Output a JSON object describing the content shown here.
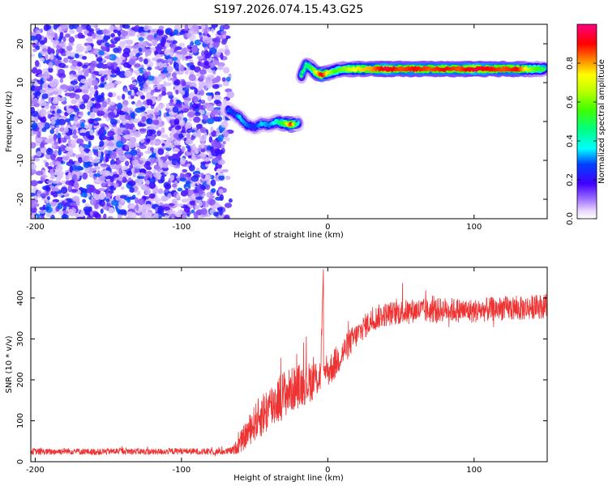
{
  "chart_data": [
    {
      "type": "heatmap",
      "title": "S197.2026.074.15.43.G25",
      "xlabel": "Height of straight line (km)",
      "ylabel": "Frequency (Hz)",
      "xlim": [
        -203,
        150
      ],
      "ylim": [
        -25,
        25
      ],
      "x_ticks": [
        -200,
        -100,
        0,
        100
      ],
      "y_ticks": [
        -20,
        -10,
        0,
        10,
        20
      ],
      "noise_region": {
        "x_range": [
          -203,
          -65
        ],
        "y_range": [
          -25,
          25
        ],
        "description_amplitude": [
          0.05,
          0.3
        ]
      },
      "signal_trace": [
        {
          "x": -68,
          "y": 3,
          "amp": 0.3
        },
        {
          "x": -64,
          "y": 2,
          "amp": 0.25
        },
        {
          "x": -60,
          "y": 1,
          "amp": 0.35
        },
        {
          "x": -55,
          "y": -1,
          "amp": 0.3
        },
        {
          "x": -50,
          "y": -1.5,
          "amp": 0.25
        },
        {
          "x": -45,
          "y": -0.5,
          "amp": 0.35
        },
        {
          "x": -40,
          "y": -1,
          "amp": 0.3
        },
        {
          "x": -35,
          "y": 0,
          "amp": 0.4
        },
        {
          "x": -30,
          "y": -0.5,
          "amp": 0.55
        },
        {
          "x": -25,
          "y": -0.8,
          "amp": 0.9
        },
        {
          "x": -20,
          "y": -0.5,
          "amp": 0.35
        },
        {
          "x": -18,
          "y": 11.8,
          "amp": 0.5
        },
        {
          "x": -15,
          "y": 14.5,
          "amp": 0.45
        },
        {
          "x": -12,
          "y": 14,
          "amp": 0.5
        },
        {
          "x": -8,
          "y": 12.5,
          "amp": 0.7
        },
        {
          "x": -4,
          "y": 12,
          "amp": 0.95
        },
        {
          "x": 0,
          "y": 12.5,
          "amp": 0.7
        },
        {
          "x": 5,
          "y": 13,
          "amp": 0.55
        },
        {
          "x": 10,
          "y": 13.5,
          "amp": 0.6
        },
        {
          "x": 20,
          "y": 13.5,
          "amp": 0.75
        },
        {
          "x": 30,
          "y": 13.5,
          "amp": 0.8
        },
        {
          "x": 40,
          "y": 13.5,
          "amp": 0.95
        },
        {
          "x": 50,
          "y": 13.5,
          "amp": 0.85
        },
        {
          "x": 60,
          "y": 13.5,
          "amp": 0.9
        },
        {
          "x": 70,
          "y": 13.5,
          "amp": 0.85
        },
        {
          "x": 80,
          "y": 13.5,
          "amp": 0.9
        },
        {
          "x": 90,
          "y": 13.5,
          "amp": 0.85
        },
        {
          "x": 100,
          "y": 13.5,
          "amp": 0.95
        },
        {
          "x": 110,
          "y": 13.5,
          "amp": 0.9
        },
        {
          "x": 120,
          "y": 13.5,
          "amp": 0.85
        },
        {
          "x": 130,
          "y": 13.5,
          "amp": 0.9
        },
        {
          "x": 140,
          "y": 13.5,
          "amp": 0.6
        },
        {
          "x": 148,
          "y": 13.5,
          "amp": 0.5
        }
      ],
      "colorbar": {
        "label": "Normalized spectral amplitude",
        "range": [
          0,
          1
        ],
        "tick_labels": [
          "0.0",
          "0.2",
          "0.4",
          "0.6",
          "0.8"
        ],
        "tick_values": [
          0,
          0.2,
          0.4,
          0.6,
          0.8
        ],
        "colormap": "hsv"
      }
    },
    {
      "type": "line",
      "title": "",
      "xlabel": "Height of straight line (km)",
      "ylabel": "SNR (10 * v/v)",
      "xlim": [
        -203,
        150
      ],
      "ylim": [
        0,
        475
      ],
      "x_ticks": [
        -200,
        -100,
        0,
        100
      ],
      "y_ticks": [
        0,
        100,
        200,
        300,
        400
      ],
      "series": [
        {
          "name": "SNR",
          "color": "#ee3333",
          "x": [
            -203,
            -190,
            -180,
            -170,
            -160,
            -150,
            -140,
            -130,
            -120,
            -110,
            -100,
            -90,
            -80,
            -70,
            -65,
            -60,
            -55,
            -50,
            -45,
            -40,
            -35,
            -30,
            -25,
            -20,
            -15,
            -10,
            -5,
            -3,
            0,
            5,
            10,
            15,
            20,
            25,
            30,
            35,
            40,
            50,
            60,
            70,
            80,
            90,
            100,
            110,
            120,
            130,
            140,
            150
          ],
          "y": [
            25,
            24,
            26,
            25,
            24,
            25,
            26,
            25,
            24,
            25,
            26,
            25,
            24,
            25,
            27,
            45,
            70,
            95,
            115,
            130,
            150,
            165,
            175,
            185,
            190,
            200,
            210,
            470,
            220,
            240,
            265,
            290,
            310,
            330,
            345,
            355,
            360,
            365,
            370,
            368,
            372,
            370,
            368,
            372,
            375,
            373,
            378,
            380
          ],
          "noise_amplitude": [
            8,
            8,
            8,
            8,
            8,
            8,
            8,
            8,
            8,
            8,
            8,
            8,
            8,
            8,
            10,
            25,
            35,
            45,
            55,
            60,
            60,
            60,
            55,
            55,
            50,
            50,
            45,
            0,
            40,
            40,
            35,
            35,
            30,
            30,
            30,
            30,
            30,
            30,
            30,
            30,
            30,
            30,
            30,
            30,
            30,
            30,
            30,
            30
          ]
        }
      ]
    }
  ]
}
